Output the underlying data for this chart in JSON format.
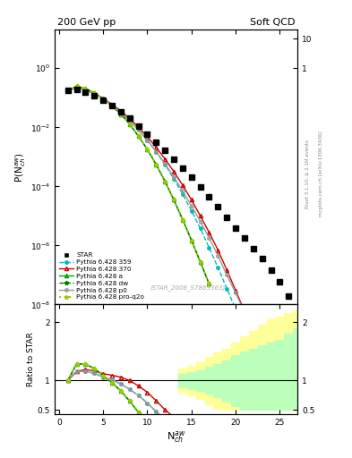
{
  "title_left": "200 GeV pp",
  "title_right": "Soft QCD",
  "ylabel_main": "P(N$^{aw}_{ch}$)",
  "ylabel_ratio": "Ratio to STAR",
  "xlabel": "N$^{aw}_{ch}$",
  "right_label1": "Rivet 3.1.10; ≥ 2.1M events",
  "right_label2": "mcplots.cern.ch [arXiv:1306.3436]",
  "watermark": "(STAR_2008_S7869363)",
  "ylim_main": [
    1e-08,
    20
  ],
  "ylim_ratio": [
    0.42,
    2.3
  ],
  "xlim": [
    -0.5,
    27
  ],
  "star_x": [
    1,
    2,
    3,
    4,
    5,
    6,
    7,
    8,
    9,
    10,
    11,
    12,
    13,
    14,
    15,
    16,
    17,
    18,
    19,
    20,
    21,
    22,
    23,
    24,
    25,
    26
  ],
  "star_y": [
    0.175,
    0.19,
    0.16,
    0.12,
    0.085,
    0.055,
    0.034,
    0.02,
    0.011,
    0.006,
    0.0032,
    0.0017,
    0.00085,
    0.00042,
    0.0002,
    9.5e-05,
    4.4e-05,
    2e-05,
    9e-06,
    4e-06,
    1.8e-06,
    8e-07,
    3.5e-07,
    1.5e-07,
    6e-08,
    2e-08
  ],
  "p359_x": [
    1,
    2,
    3,
    4,
    5,
    6,
    7,
    8,
    9,
    10,
    11,
    12,
    13,
    14,
    15,
    16,
    17,
    18,
    19,
    20
  ],
  "p359_y": [
    0.175,
    0.22,
    0.185,
    0.135,
    0.09,
    0.056,
    0.032,
    0.017,
    0.0082,
    0.0037,
    0.0015,
    0.00055,
    0.00018,
    5.5e-05,
    1.5e-05,
    3.8e-06,
    8.5e-07,
    1.8e-07,
    3.5e-08,
    7e-09
  ],
  "p370_x": [
    1,
    2,
    3,
    4,
    5,
    6,
    7,
    8,
    9,
    10,
    11,
    12,
    13,
    14,
    15,
    16,
    17,
    18,
    19,
    20,
    21,
    22
  ],
  "p370_y": [
    0.175,
    0.22,
    0.19,
    0.14,
    0.095,
    0.06,
    0.036,
    0.02,
    0.01,
    0.0048,
    0.0021,
    0.00085,
    0.00032,
    0.00011,
    3.5e-05,
    1e-05,
    2.8e-06,
    7e-07,
    1.5e-07,
    3e-08,
    6e-09,
    1.5e-09
  ],
  "pa_x": [
    1,
    2,
    3,
    4,
    5,
    6,
    7,
    8,
    9,
    10,
    11,
    12,
    13,
    14,
    15,
    16,
    17
  ],
  "pa_y": [
    0.175,
    0.245,
    0.205,
    0.145,
    0.092,
    0.053,
    0.028,
    0.013,
    0.005,
    0.0018,
    0.00055,
    0.00015,
    3.5e-05,
    7.5e-06,
    1.5e-06,
    2.8e-07,
    5e-08
  ],
  "pdw_x": [
    1,
    2,
    3,
    4,
    5,
    6,
    7,
    8,
    9,
    10,
    11,
    12,
    13,
    14,
    15,
    16,
    17
  ],
  "pdw_y": [
    0.175,
    0.245,
    0.205,
    0.145,
    0.092,
    0.053,
    0.028,
    0.013,
    0.005,
    0.0018,
    0.00055,
    0.00015,
    3.5e-05,
    7.5e-06,
    1.5e-06,
    2.8e-07,
    5e-08
  ],
  "pp0_x": [
    1,
    2,
    3,
    4,
    5,
    6,
    7,
    8,
    9,
    10,
    11,
    12,
    13,
    14,
    15,
    16,
    17,
    18,
    19,
    20,
    21,
    22,
    23,
    24
  ],
  "pp0_y": [
    0.175,
    0.22,
    0.185,
    0.135,
    0.09,
    0.056,
    0.032,
    0.017,
    0.0082,
    0.0037,
    0.0015,
    0.00058,
    0.00021,
    7e-05,
    2.2e-05,
    6.5e-06,
    1.8e-06,
    4.5e-07,
    1e-07,
    2.5e-08,
    5.5e-09,
    1.2e-09,
    3e-10,
    6e-11
  ],
  "pproq2o_x": [
    1,
    2,
    3,
    4,
    5,
    6,
    7,
    8,
    9,
    10,
    11,
    12,
    13,
    14,
    15,
    16,
    17
  ],
  "pproq2o_y": [
    0.175,
    0.245,
    0.205,
    0.145,
    0.092,
    0.053,
    0.028,
    0.013,
    0.005,
    0.0018,
    0.00055,
    0.00015,
    3.5e-05,
    7.5e-06,
    1.5e-06,
    2.8e-07,
    5e-08
  ],
  "color_star": "#000000",
  "color_359": "#00bbbb",
  "color_370": "#cc0000",
  "color_a": "#00aa00",
  "color_dw": "#007700",
  "color_p0": "#999999",
  "color_proq2o": "#99cc00",
  "bg_green": "#bbffbb",
  "bg_yellow": "#ffff99",
  "band_centers": [
    14,
    15,
    16,
    17,
    18,
    19,
    20,
    21,
    22,
    23,
    24,
    25,
    26,
    27
  ],
  "band_green_lo": [
    0.88,
    0.85,
    0.82,
    0.77,
    0.72,
    0.65,
    0.57,
    0.5,
    0.5,
    0.5,
    0.5,
    0.5,
    0.5,
    0.5
  ],
  "band_green_hi": [
    1.12,
    1.15,
    1.18,
    1.23,
    1.28,
    1.35,
    1.43,
    1.5,
    1.55,
    1.6,
    1.65,
    1.7,
    1.8,
    1.9
  ],
  "band_yellow_lo": [
    0.8,
    0.75,
    0.68,
    0.6,
    0.52,
    0.5,
    0.5,
    0.5,
    0.5,
    0.5,
    0.5,
    0.5,
    0.5,
    0.5
  ],
  "band_yellow_hi": [
    1.2,
    1.25,
    1.32,
    1.4,
    1.48,
    1.55,
    1.65,
    1.75,
    1.85,
    1.95,
    2.05,
    2.1,
    2.15,
    2.2
  ]
}
